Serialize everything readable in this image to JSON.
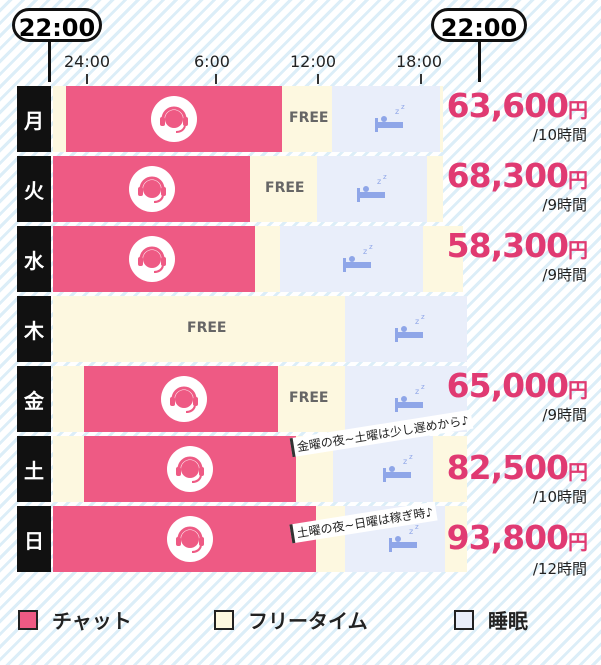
{
  "header": {
    "start_time": "22:00",
    "end_time": "22:00",
    "ticks": [
      "24:00",
      "6:00",
      "12:00",
      "18:00"
    ]
  },
  "rows": [
    {
      "day": "月",
      "free": "FREE",
      "price": "63,600",
      "yen": "円",
      "hours": "/10時間"
    },
    {
      "day": "火",
      "free": "FREE",
      "price": "68,300",
      "yen": "円",
      "hours": "/9時間"
    },
    {
      "day": "水",
      "free": "",
      "price": "58,300",
      "yen": "円",
      "hours": "/9時間"
    },
    {
      "day": "木",
      "free": "FREE",
      "price": "",
      "yen": "",
      "hours": ""
    },
    {
      "day": "金",
      "free": "FREE",
      "price": "65,000",
      "yen": "円",
      "hours": "/9時間"
    },
    {
      "day": "土",
      "free": "",
      "price": "82,500",
      "yen": "円",
      "hours": "/10時間"
    },
    {
      "day": "日",
      "free": "",
      "price": "93,800",
      "yen": "円",
      "hours": "/12時間"
    }
  ],
  "notes": {
    "fri_sat": "金曜の夜~土曜は少し遅めから♪",
    "sat_sun": "土曜の夜~日曜は稼ぎ時♪"
  },
  "legend": {
    "chat": "チャット",
    "free_time": "フリータイム",
    "sleep": "睡眠"
  },
  "colors": {
    "chat": "#ee5a84",
    "free_time": "#fdf8e0",
    "sleep": "#e9eefa",
    "price": "#e03a72"
  },
  "icons": {
    "chat": "headset-icon",
    "sleep": "bed-sleep-icon"
  }
}
